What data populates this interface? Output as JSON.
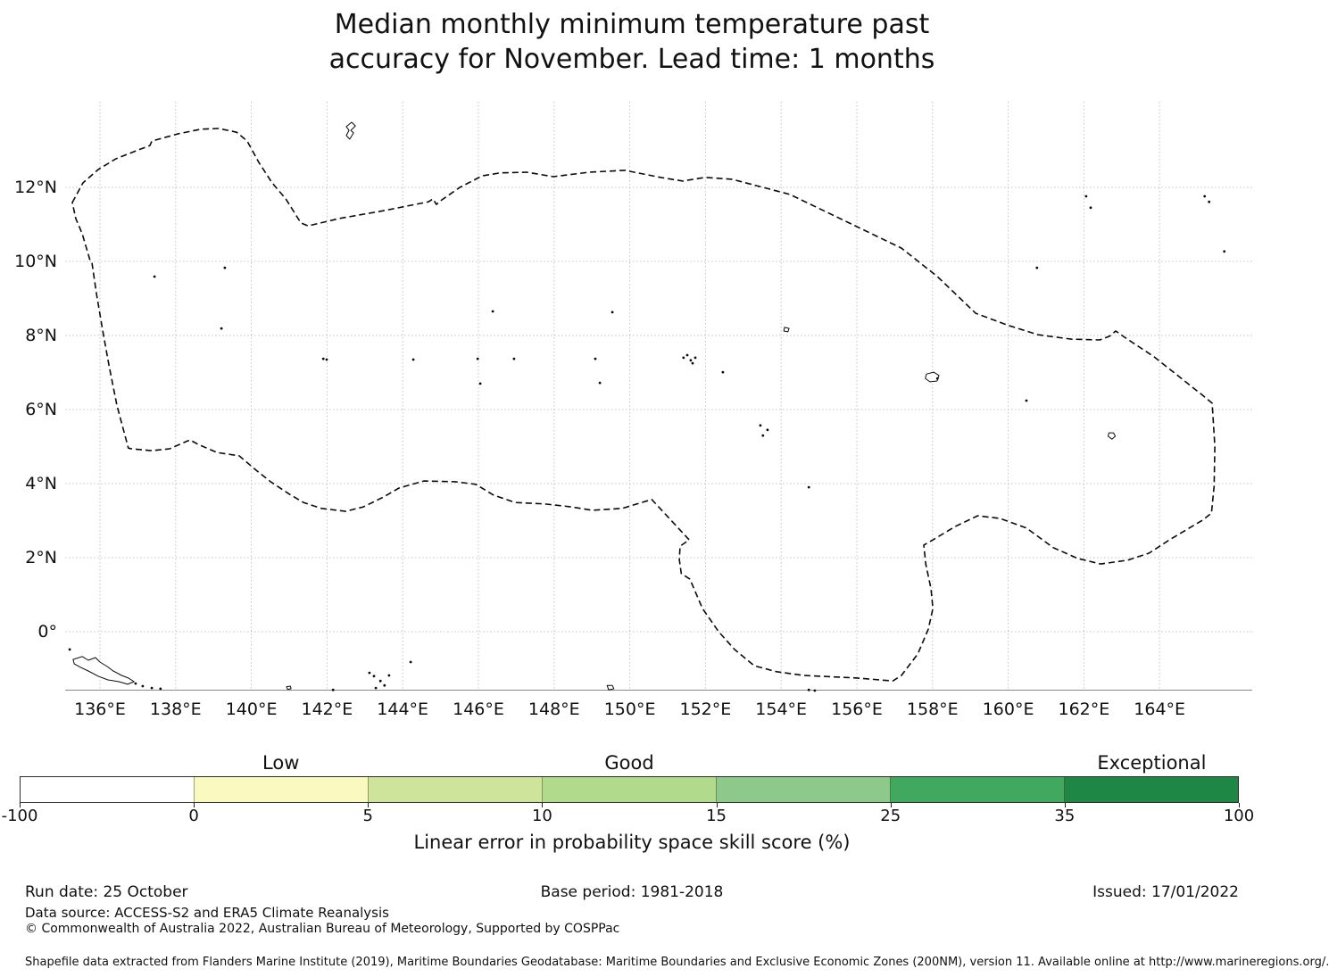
{
  "title": {
    "line1": "Median monthly minimum temperature past",
    "line2": "accuracy for November. Lead time: 1 months"
  },
  "footer": {
    "run_date": "Run date: 25 October",
    "base_period": "Base period: 1981-2018",
    "issued": "Issued: 17/01/2022",
    "data_source": "Data source: ACCESS-S2 and ERA5 Climate Reanalysis",
    "copyright": "© Commonwealth of Australia 2022, Australian Bureau of Meteorology, Supported by COSPPac",
    "shapefile_note": "Shapefile data extracted from Flanders Marine Institute (2019), Maritime Boundaries Geodatabase: Maritime Boundaries and Exclusive Economic Zones (200NM), version 11. Available online at http://www.marineregions.org/."
  },
  "chart_data": {
    "type": "map",
    "title": "Median monthly minimum temperature past accuracy for November. Lead time: 1 months",
    "x_axis": {
      "tick_labels": [
        "136°E",
        "138°E",
        "140°E",
        "142°E",
        "144°E",
        "146°E",
        "148°E",
        "150°E",
        "152°E",
        "154°E",
        "156°E",
        "158°E",
        "160°E",
        "162°E",
        "164°E"
      ],
      "tick_lons": [
        136,
        138,
        140,
        142,
        144,
        146,
        148,
        150,
        152,
        154,
        156,
        158,
        160,
        162,
        164
      ]
    },
    "y_axis": {
      "tick_labels": [
        "12°N",
        "10°N",
        "8°N",
        "6°N",
        "4°N",
        "2°N",
        "0°"
      ],
      "tick_lats": [
        12,
        10,
        8,
        6,
        4,
        2,
        0
      ]
    },
    "scale": {
      "label": "Linear error in probability space skill score (%)",
      "boundaries": [
        -100,
        0,
        5,
        10,
        15,
        25,
        35,
        100
      ],
      "colors": [
        "#ffffff",
        "#fafac0",
        "#cde49a",
        "#b2da8c",
        "#8cc98b",
        "#41a85f",
        "#1f8745"
      ],
      "categories": [
        {
          "label": "Low",
          "segment_index": 1
        },
        {
          "label": "Good",
          "segment_index": 3
        },
        {
          "label": "Exceptional",
          "segment_index": 6
        }
      ]
    },
    "boundary_lonlat": [
      [
        135.27,
        11.59
      ],
      [
        135.55,
        12.12
      ],
      [
        135.95,
        12.48
      ],
      [
        136.42,
        12.77
      ],
      [
        137.01,
        13.01
      ],
      [
        137.32,
        13.13
      ],
      [
        137.37,
        13.25
      ],
      [
        138.08,
        13.45
      ],
      [
        138.67,
        13.57
      ],
      [
        139.14,
        13.59
      ],
      [
        139.61,
        13.49
      ],
      [
        139.89,
        13.25
      ],
      [
        140.2,
        12.67
      ],
      [
        140.55,
        12.12
      ],
      [
        140.91,
        11.69
      ],
      [
        141.31,
        11.04
      ],
      [
        141.5,
        10.96
      ],
      [
        142.32,
        11.16
      ],
      [
        143.5,
        11.37
      ],
      [
        144.68,
        11.61
      ],
      [
        144.8,
        11.69
      ],
      [
        144.89,
        11.54
      ],
      [
        145.03,
        11.66
      ],
      [
        145.51,
        12.0
      ],
      [
        146.1,
        12.31
      ],
      [
        146.57,
        12.39
      ],
      [
        147.28,
        12.41
      ],
      [
        147.98,
        12.29
      ],
      [
        148.93,
        12.41
      ],
      [
        149.87,
        12.46
      ],
      [
        150.81,
        12.27
      ],
      [
        151.4,
        12.17
      ],
      [
        151.99,
        12.27
      ],
      [
        152.7,
        12.22
      ],
      [
        154.23,
        11.81
      ],
      [
        157.18,
        10.36
      ],
      [
        158.13,
        9.59
      ],
      [
        159.14,
        8.6
      ],
      [
        160.01,
        8.27
      ],
      [
        160.79,
        8.02
      ],
      [
        161.66,
        7.9
      ],
      [
        162.42,
        7.88
      ],
      [
        162.68,
        7.98
      ],
      [
        162.84,
        8.12
      ],
      [
        163.08,
        7.95
      ],
      [
        163.86,
        7.42
      ],
      [
        165.13,
        6.39
      ],
      [
        165.39,
        6.17
      ],
      [
        165.46,
        5.01
      ],
      [
        165.44,
        3.93
      ],
      [
        165.37,
        3.2
      ],
      [
        165.13,
        3.01
      ],
      [
        164.26,
        2.48
      ],
      [
        163.72,
        2.12
      ],
      [
        163.15,
        1.93
      ],
      [
        162.44,
        1.83
      ],
      [
        161.83,
        1.98
      ],
      [
        161.19,
        2.27
      ],
      [
        160.48,
        2.8
      ],
      [
        159.78,
        3.06
      ],
      [
        159.19,
        3.13
      ],
      [
        158.6,
        2.84
      ],
      [
        158.01,
        2.48
      ],
      [
        157.77,
        2.34
      ],
      [
        157.82,
        1.83
      ],
      [
        157.96,
        1.16
      ],
      [
        158.01,
        0.63
      ],
      [
        157.89,
        0.07
      ],
      [
        157.61,
        -0.6
      ],
      [
        157.18,
        -1.18
      ],
      [
        156.95,
        -1.33
      ],
      [
        156.0,
        -1.25
      ],
      [
        154.59,
        -1.18
      ],
      [
        153.88,
        -1.08
      ],
      [
        153.29,
        -0.92
      ],
      [
        152.77,
        -0.48
      ],
      [
        152.35,
        0.0
      ],
      [
        151.92,
        0.63
      ],
      [
        151.59,
        1.42
      ],
      [
        151.36,
        1.57
      ],
      [
        151.31,
        1.95
      ],
      [
        151.33,
        2.31
      ],
      [
        151.57,
        2.48
      ],
      [
        150.98,
        3.13
      ],
      [
        150.58,
        3.57
      ],
      [
        149.8,
        3.33
      ],
      [
        149.0,
        3.28
      ],
      [
        148.46,
        3.37
      ],
      [
        147.75,
        3.45
      ],
      [
        146.97,
        3.49
      ],
      [
        146.4,
        3.69
      ],
      [
        145.93,
        3.98
      ],
      [
        145.39,
        4.05
      ],
      [
        144.56,
        4.07
      ],
      [
        143.9,
        3.88
      ],
      [
        143.5,
        3.64
      ],
      [
        142.96,
        3.37
      ],
      [
        142.49,
        3.25
      ],
      [
        141.85,
        3.33
      ],
      [
        141.38,
        3.49
      ],
      [
        140.98,
        3.73
      ],
      [
        140.51,
        4.05
      ],
      [
        140.13,
        4.36
      ],
      [
        139.68,
        4.75
      ],
      [
        139.09,
        4.84
      ],
      [
        138.59,
        5.06
      ],
      [
        138.38,
        5.18
      ],
      [
        137.84,
        4.94
      ],
      [
        137.37,
        4.89
      ],
      [
        136.83,
        4.94
      ],
      [
        136.75,
        4.96
      ],
      [
        136.61,
        5.49
      ],
      [
        136.45,
        6.1
      ],
      [
        136.24,
        7.18
      ],
      [
        136.07,
        8.14
      ],
      [
        135.91,
        9.11
      ],
      [
        135.79,
        9.95
      ],
      [
        135.74,
        10.02
      ],
      [
        135.53,
        10.75
      ],
      [
        135.36,
        11.16
      ]
    ],
    "island_dots_lonlat": [
      [
        137.44,
        9.59
      ],
      [
        139.3,
        9.83
      ],
      [
        139.21,
        8.19
      ],
      [
        141.9,
        7.37
      ],
      [
        141.99,
        7.35
      ],
      [
        144.28,
        7.35
      ],
      [
        145.98,
        7.37
      ],
      [
        146.38,
        8.65
      ],
      [
        146.05,
        6.7
      ],
      [
        146.94,
        7.37
      ],
      [
        149.09,
        7.37
      ],
      [
        149.54,
        8.63
      ],
      [
        149.21,
        6.72
      ],
      [
        151.42,
        7.4
      ],
      [
        151.52,
        7.47
      ],
      [
        151.61,
        7.33
      ],
      [
        151.73,
        7.4
      ],
      [
        151.66,
        7.25
      ],
      [
        152.46,
        7.01
      ],
      [
        153.45,
        5.57
      ],
      [
        153.64,
        5.45
      ],
      [
        153.52,
        5.3
      ],
      [
        154.73,
        3.9
      ],
      [
        160.48,
        6.24
      ],
      [
        160.76,
        9.83
      ],
      [
        162.06,
        11.76
      ],
      [
        162.18,
        11.45
      ],
      [
        165.19,
        11.76
      ],
      [
        165.31,
        11.61
      ],
      [
        165.71,
        10.27
      ],
      [
        135.2,
        -0.48
      ],
      [
        136.94,
        -1.4
      ],
      [
        137.13,
        -1.47
      ],
      [
        137.37,
        -1.52
      ],
      [
        137.6,
        -1.54
      ],
      [
        142.16,
        -1.57
      ],
      [
        143.12,
        -1.11
      ],
      [
        143.24,
        -1.2
      ],
      [
        143.41,
        -1.33
      ],
      [
        143.52,
        -1.45
      ],
      [
        143.29,
        -1.52
      ],
      [
        143.64,
        -1.18
      ],
      [
        144.21,
        -0.82
      ],
      [
        154.73,
        -1.57
      ],
      [
        154.89,
        -1.59
      ],
      [
        158.13,
        6.84
      ]
    ],
    "island_outlines_lonlat": [
      [
        [
          142.65,
          13.76
        ],
        [
          142.75,
          13.66
        ],
        [
          142.63,
          13.54
        ],
        [
          142.7,
          13.47
        ],
        [
          142.6,
          13.3
        ],
        [
          142.51,
          13.4
        ],
        [
          142.58,
          13.54
        ],
        [
          142.51,
          13.64
        ]
      ],
      [
        [
          135.29,
          -0.75
        ],
        [
          135.53,
          -0.67
        ],
        [
          135.69,
          -0.77
        ],
        [
          135.88,
          -0.7
        ],
        [
          136.0,
          -0.82
        ],
        [
          136.19,
          -0.94
        ],
        [
          136.35,
          -1.06
        ],
        [
          136.57,
          -1.18
        ],
        [
          136.75,
          -1.25
        ],
        [
          136.9,
          -1.35
        ],
        [
          136.73,
          -1.42
        ],
        [
          136.5,
          -1.35
        ],
        [
          136.21,
          -1.3
        ],
        [
          135.95,
          -1.2
        ],
        [
          135.69,
          -1.06
        ],
        [
          135.48,
          -0.96
        ],
        [
          135.32,
          -0.87
        ]
      ],
      [
        [
          157.84,
          6.96
        ],
        [
          158.03,
          7.01
        ],
        [
          158.17,
          6.92
        ],
        [
          158.12,
          6.77
        ],
        [
          157.93,
          6.75
        ],
        [
          157.81,
          6.84
        ]
      ],
      [
        [
          162.66,
          5.37
        ],
        [
          162.78,
          5.37
        ],
        [
          162.83,
          5.28
        ],
        [
          162.74,
          5.2
        ],
        [
          162.64,
          5.28
        ]
      ],
      [
        [
          154.09,
          8.22
        ],
        [
          154.21,
          8.19
        ],
        [
          154.18,
          8.1
        ],
        [
          154.07,
          8.12
        ]
      ],
      [
        [
          149.4,
          -1.45
        ],
        [
          149.54,
          -1.45
        ],
        [
          149.58,
          -1.54
        ],
        [
          149.44,
          -1.57
        ]
      ],
      [
        [
          140.93,
          -1.49
        ],
        [
          141.03,
          -1.47
        ],
        [
          141.05,
          -1.54
        ],
        [
          140.96,
          -1.56
        ]
      ]
    ]
  }
}
